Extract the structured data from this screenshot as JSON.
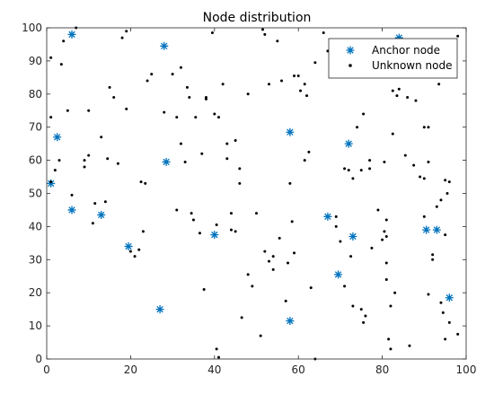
{
  "chart_data": {
    "type": "scatter",
    "title": "Node distribution",
    "xlabel": "",
    "ylabel": "",
    "xlim": [
      0,
      100
    ],
    "ylim": [
      0,
      100
    ],
    "xticks": [
      0,
      20,
      40,
      60,
      80,
      100
    ],
    "yticks": [
      0,
      10,
      20,
      30,
      40,
      50,
      60,
      70,
      80,
      90,
      100
    ],
    "grid": false,
    "legend_position": "top-right",
    "series": [
      {
        "name": "Anchor node",
        "marker": "asterisk",
        "color": "#0072BD",
        "points": [
          [
            6,
            98
          ],
          [
            28,
            94.5
          ],
          [
            84,
            97
          ],
          [
            2.5,
            67
          ],
          [
            58,
            68.5
          ],
          [
            72,
            65
          ],
          [
            28.5,
            59.5
          ],
          [
            1,
            53
          ],
          [
            6,
            45
          ],
          [
            13,
            43.5
          ],
          [
            67,
            43
          ],
          [
            40,
            37.5
          ],
          [
            73,
            37
          ],
          [
            90.5,
            39
          ],
          [
            93,
            39
          ],
          [
            19.5,
            34
          ],
          [
            69.5,
            25.5
          ],
          [
            96,
            18.5
          ],
          [
            27,
            15
          ],
          [
            58,
            11.5
          ]
        ]
      },
      {
        "name": "Unknown node",
        "marker": "dot",
        "color": "#000000",
        "points": [
          [
            1,
            91
          ],
          [
            3.5,
            89
          ],
          [
            4,
            96
          ],
          [
            7,
            100
          ],
          [
            5,
            75
          ],
          [
            1,
            73
          ],
          [
            3,
            60
          ],
          [
            2,
            57
          ],
          [
            1,
            53.5
          ],
          [
            6,
            49.5
          ],
          [
            9,
            60
          ],
          [
            9,
            58
          ],
          [
            10,
            61.5
          ],
          [
            10,
            75
          ],
          [
            11,
            41
          ],
          [
            11.5,
            47
          ],
          [
            13,
            67
          ],
          [
            14,
            47.5
          ],
          [
            14.5,
            60.5
          ],
          [
            15,
            82
          ],
          [
            16,
            79
          ],
          [
            18,
            97
          ],
          [
            19,
            99
          ],
          [
            19,
            75.5
          ],
          [
            17,
            59
          ],
          [
            20,
            32.5
          ],
          [
            21,
            31
          ],
          [
            22,
            33
          ],
          [
            22.5,
            53.5
          ],
          [
            23,
            38.5
          ],
          [
            23.5,
            53
          ],
          [
            24,
            84
          ],
          [
            25,
            86
          ],
          [
            28,
            74.5
          ],
          [
            30,
            86
          ],
          [
            31,
            73
          ],
          [
            31,
            45
          ],
          [
            32,
            88
          ],
          [
            32,
            65
          ],
          [
            33,
            59.5
          ],
          [
            33.5,
            82
          ],
          [
            34,
            79
          ],
          [
            34.5,
            44
          ],
          [
            35,
            42
          ],
          [
            35.5,
            73
          ],
          [
            36.5,
            38
          ],
          [
            37,
            62
          ],
          [
            37.5,
            21
          ],
          [
            38,
            79
          ],
          [
            38,
            78.5
          ],
          [
            39.5,
            98.5
          ],
          [
            40,
            74
          ],
          [
            41,
            73
          ],
          [
            40.5,
            40.5
          ],
          [
            41,
            0.5
          ],
          [
            40.5,
            3
          ],
          [
            42,
            83
          ],
          [
            43,
            65
          ],
          [
            43,
            60.5
          ],
          [
            44,
            44
          ],
          [
            44,
            39
          ],
          [
            45,
            38.5
          ],
          [
            45,
            66
          ],
          [
            46,
            57.5
          ],
          [
            46,
            53
          ],
          [
            46.5,
            12.5
          ],
          [
            48,
            80
          ],
          [
            48,
            25.5
          ],
          [
            49,
            22
          ],
          [
            50,
            44
          ],
          [
            51,
            7
          ],
          [
            51.5,
            99.5
          ],
          [
            52,
            32.5
          ],
          [
            52,
            98
          ],
          [
            53,
            83
          ],
          [
            53,
            29.5
          ],
          [
            54,
            31
          ],
          [
            54,
            27
          ],
          [
            55,
            96
          ],
          [
            55.5,
            36.5
          ],
          [
            56,
            84
          ],
          [
            57,
            17.5
          ],
          [
            57.5,
            29
          ],
          [
            58,
            53
          ],
          [
            58.5,
            41.5
          ],
          [
            59,
            32
          ],
          [
            59,
            85.5
          ],
          [
            60,
            85.5
          ],
          [
            60.5,
            81
          ],
          [
            61.5,
            83
          ],
          [
            61.5,
            60
          ],
          [
            62,
            79.5
          ],
          [
            62.5,
            62.5
          ],
          [
            63,
            21.5
          ],
          [
            64,
            0
          ],
          [
            64,
            89.5
          ],
          [
            66,
            98.5
          ],
          [
            67,
            93
          ],
          [
            68,
            86
          ],
          [
            69,
            43
          ],
          [
            69,
            40
          ],
          [
            70,
            35.5
          ],
          [
            71,
            57.5
          ],
          [
            71,
            22
          ],
          [
            72,
            57
          ],
          [
            72.5,
            31
          ],
          [
            73,
            16
          ],
          [
            73,
            54.5
          ],
          [
            74,
            70
          ],
          [
            75,
            57
          ],
          [
            75,
            15
          ],
          [
            75.5,
            11
          ],
          [
            75.5,
            74
          ],
          [
            76,
            13
          ],
          [
            77,
            60
          ],
          [
            77,
            57.5
          ],
          [
            77.5,
            33.5
          ],
          [
            79,
            45
          ],
          [
            80,
            36
          ],
          [
            80.5,
            38.5
          ],
          [
            80.5,
            59.5
          ],
          [
            81,
            24
          ],
          [
            81,
            37
          ],
          [
            81,
            42
          ],
          [
            81,
            29
          ],
          [
            81.5,
            6
          ],
          [
            82,
            3
          ],
          [
            82,
            16
          ],
          [
            82.5,
            68
          ],
          [
            82.5,
            81
          ],
          [
            83,
            20
          ],
          [
            83.5,
            79.5
          ],
          [
            84,
            87
          ],
          [
            84,
            81.5
          ],
          [
            85.5,
            61.5
          ],
          [
            86,
            79
          ],
          [
            86.5,
            4
          ],
          [
            87.5,
            58.5
          ],
          [
            88,
            78
          ],
          [
            89,
            55
          ],
          [
            89,
            92.5
          ],
          [
            90,
            54.5
          ],
          [
            90,
            43
          ],
          [
            90,
            70
          ],
          [
            91,
            19.5
          ],
          [
            91,
            70
          ],
          [
            91,
            59.5
          ],
          [
            92,
            31.5
          ],
          [
            92,
            30
          ],
          [
            93,
            46
          ],
          [
            93.5,
            83
          ],
          [
            94,
            17
          ],
          [
            94,
            48
          ],
          [
            94,
            85.5
          ],
          [
            94.5,
            14
          ],
          [
            95,
            6
          ],
          [
            95,
            54
          ],
          [
            95,
            37.5
          ],
          [
            95.5,
            50
          ],
          [
            96,
            11
          ],
          [
            96,
            53.5
          ],
          [
            97.5,
            92.5
          ],
          [
            98,
            7.5
          ],
          [
            98,
            97.5
          ]
        ]
      }
    ]
  }
}
